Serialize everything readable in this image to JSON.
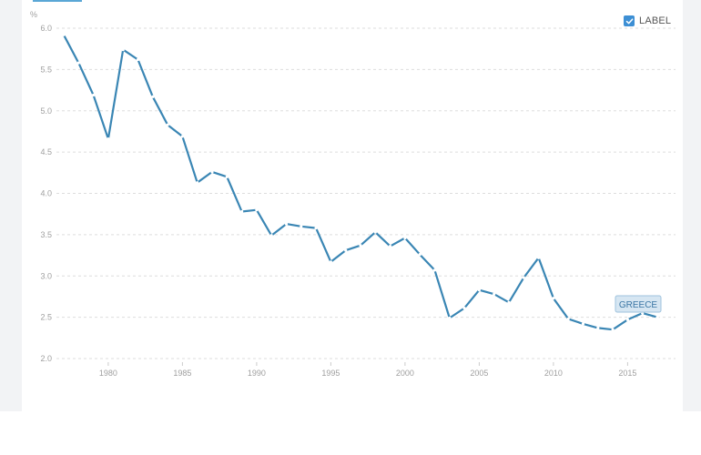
{
  "legend": {
    "checkbox_label": "LABEL",
    "checked": true
  },
  "colors": {
    "line": "#3a86b4",
    "grid": "#dddddd",
    "checkbox": "#3d8fd4",
    "series_label_bg": "#d6e6f2",
    "series_label_border": "#9fc3dd",
    "series_label_text": "#3a76a4"
  },
  "chart_data": {
    "type": "line",
    "ylabel": "%",
    "xlim": [
      1977,
      2017
    ],
    "ylim": [
      2.0,
      6.0
    ],
    "x_ticks": [
      1980,
      1985,
      1990,
      1995,
      2000,
      2005,
      2010,
      2015
    ],
    "y_ticks": [
      2.0,
      2.5,
      3.0,
      3.5,
      4.0,
      4.5,
      5.0,
      5.5,
      6.0
    ],
    "grid": true,
    "series": [
      {
        "name": "GREECE",
        "x": [
          1977,
          1978,
          1979,
          1980,
          1981,
          1982,
          1983,
          1984,
          1985,
          1986,
          1987,
          1988,
          1989,
          1990,
          1991,
          1992,
          1993,
          1994,
          1995,
          1996,
          1997,
          1998,
          1999,
          2000,
          2001,
          2002,
          2003,
          2004,
          2005,
          2006,
          2007,
          2008,
          2009,
          2010,
          2011,
          2012,
          2013,
          2014,
          2015,
          2016,
          2017
        ],
        "values": [
          5.92,
          5.58,
          5.19,
          4.66,
          5.74,
          5.62,
          5.17,
          4.83,
          4.69,
          4.13,
          4.26,
          4.2,
          3.78,
          3.8,
          3.49,
          3.63,
          3.6,
          3.58,
          3.17,
          3.31,
          3.37,
          3.53,
          3.36,
          3.46,
          3.26,
          3.07,
          2.49,
          2.61,
          2.83,
          2.78,
          2.68,
          2.98,
          3.22,
          2.73,
          2.48,
          2.42,
          2.37,
          2.35,
          2.47,
          2.55,
          2.5
        ]
      }
    ]
  }
}
